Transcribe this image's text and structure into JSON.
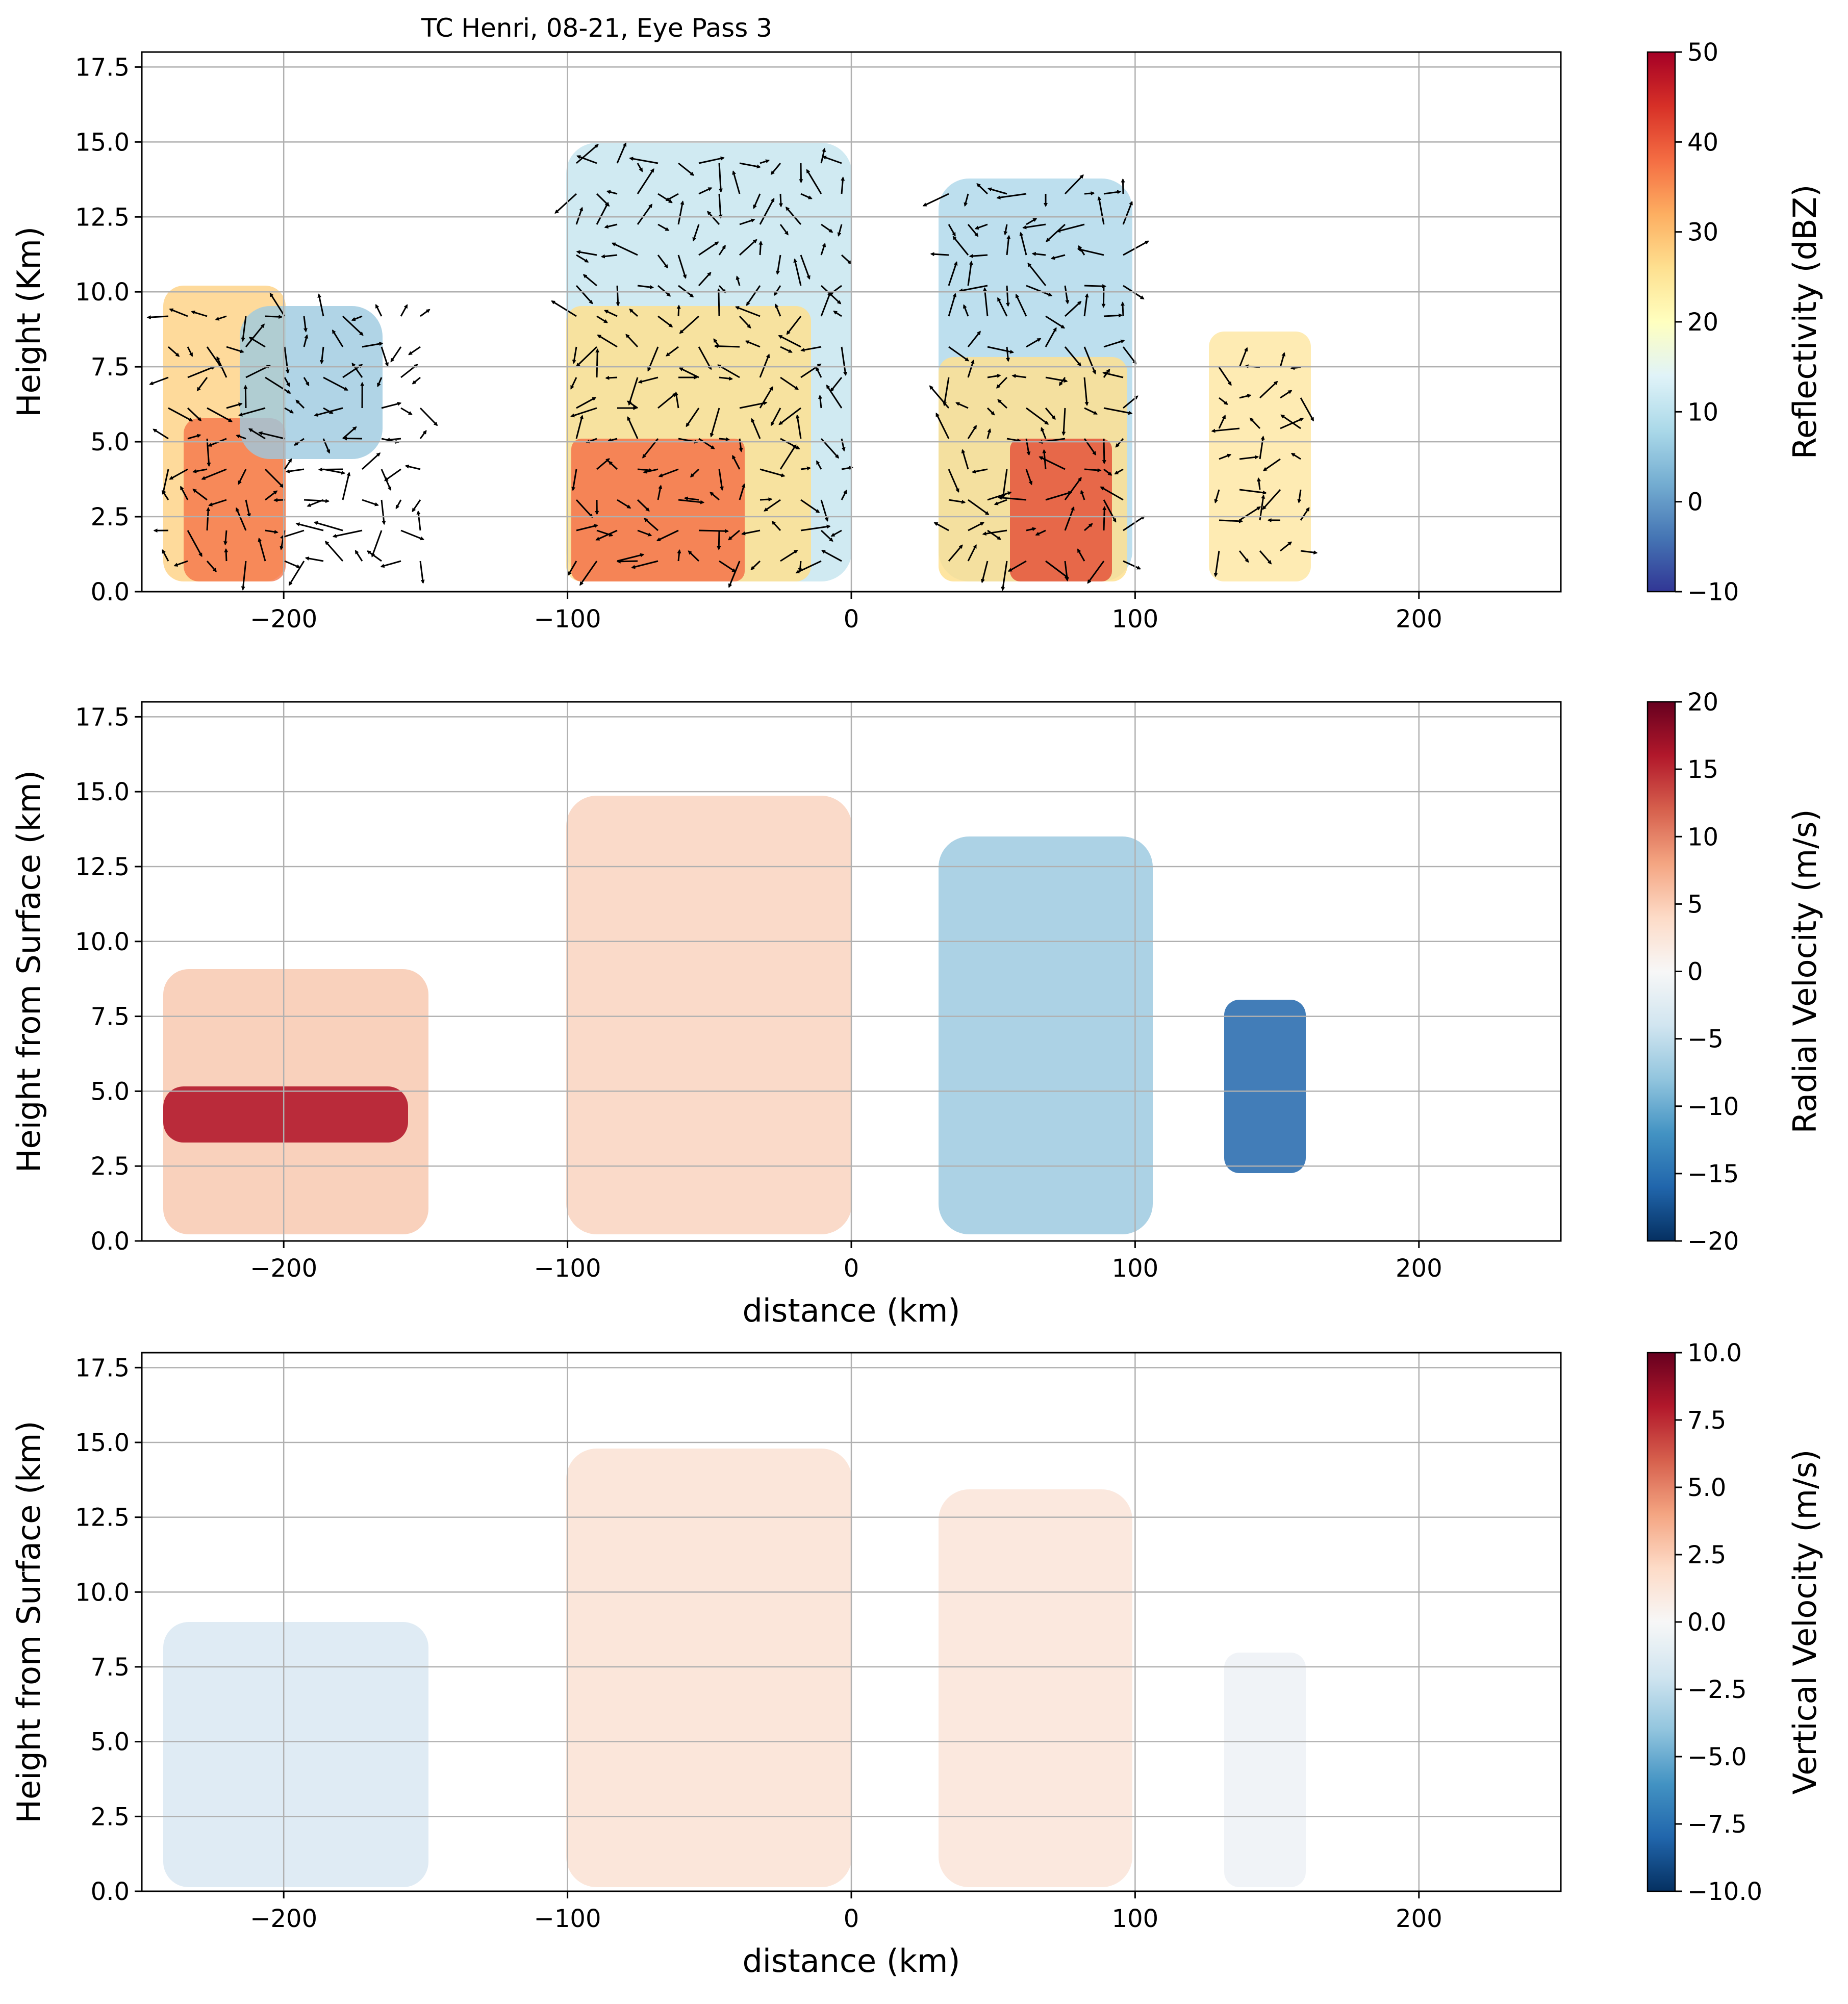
{
  "figure": {
    "title": "TC Henri, 08-21, Eye Pass 3"
  },
  "chart_data": [
    {
      "type": "heatmap",
      "title": "TC Henri, 08-21, Eye Pass 3",
      "xlabel": "",
      "ylabel": "Height (Km)",
      "xlim": [
        -250,
        250
      ],
      "ylim": [
        0,
        18
      ],
      "xticks": [
        -200,
        -100,
        0,
        100,
        200
      ],
      "xtick_labels": [
        "−200",
        "−100",
        "0",
        "100",
        "200"
      ],
      "yticks": [
        0,
        2.5,
        5,
        7.5,
        10,
        12.5,
        15,
        17.5
      ],
      "ytick_labels": [
        "0.0",
        "2.5",
        "5.0",
        "7.5",
        "10.0",
        "12.5",
        "15.0",
        "17.5"
      ],
      "grid": true,
      "colormap": "RdYlBu_r",
      "colorbar": {
        "label": "Reflectivity (dBZ)",
        "min": -10,
        "max": 50,
        "ticks": [
          -10,
          0,
          10,
          20,
          30,
          40,
          50
        ],
        "tick_labels": [
          "−10",
          "0",
          "10",
          "20",
          "30",
          "40",
          "50"
        ]
      },
      "has_wind_vectors": true,
      "echo_regions": [
        {
          "x": [
            -245,
            -140
          ],
          "y": [
            0.3,
            9.5
          ],
          "peak": 44
        },
        {
          "x": [
            -100,
            -5
          ],
          "y": [
            0.3,
            15.0
          ],
          "peak": 46
        },
        {
          "x": [
            0,
            105
          ],
          "y": [
            0.3,
            13.5
          ],
          "peak": 47
        },
        {
          "x": [
            120,
            165
          ],
          "y": [
            0.3,
            8.5
          ],
          "peak": 38
        }
      ]
    },
    {
      "type": "heatmap",
      "title": "",
      "xlabel": "distance (km)",
      "ylabel": "Height from Surface (km)",
      "xlim": [
        -250,
        250
      ],
      "ylim": [
        0,
        18
      ],
      "xticks": [
        -200,
        -100,
        0,
        100,
        200
      ],
      "xtick_labels": [
        "−200",
        "−100",
        "0",
        "100",
        "200"
      ],
      "yticks": [
        0,
        2.5,
        5,
        7.5,
        10,
        12.5,
        15,
        17.5
      ],
      "ytick_labels": [
        "0.0",
        "2.5",
        "5.0",
        "7.5",
        "10.0",
        "12.5",
        "15.0",
        "17.5"
      ],
      "grid": true,
      "colormap": "RdBu_r",
      "colorbar": {
        "label": "Radial Velocity (m/s)",
        "min": -20,
        "max": 20,
        "ticks": [
          -20,
          -15,
          -10,
          -5,
          0,
          5,
          10,
          15,
          20
        ],
        "tick_labels": [
          "−20",
          "−15",
          "−10",
          "−5",
          "0",
          "5",
          "10",
          "15",
          "20"
        ]
      },
      "echo_regions": [
        {
          "x": [
            -245,
            -140
          ],
          "y": [
            0.3,
            9.5
          ],
          "value": 18
        },
        {
          "x": [
            -100,
            -5
          ],
          "y": [
            0.3,
            15.0
          ],
          "value": 6
        },
        {
          "x": [
            0,
            105
          ],
          "y": [
            0.3,
            13.5
          ],
          "value": -9
        },
        {
          "x": [
            120,
            165
          ],
          "y": [
            0.3,
            8.5
          ],
          "value": -15
        }
      ]
    },
    {
      "type": "heatmap",
      "title": "",
      "xlabel": "distance (km)",
      "ylabel": "Height from Surface (km)",
      "xlim": [
        -250,
        250
      ],
      "ylim": [
        0,
        18
      ],
      "xticks": [
        -200,
        -100,
        0,
        100,
        200
      ],
      "xtick_labels": [
        "−200",
        "−100",
        "0",
        "100",
        "200"
      ],
      "yticks": [
        0,
        2.5,
        5,
        7.5,
        10,
        12.5,
        15,
        17.5
      ],
      "ytick_labels": [
        "0.0",
        "2.5",
        "5.0",
        "7.5",
        "10.0",
        "12.5",
        "15.0",
        "17.5"
      ],
      "grid": true,
      "colormap": "RdBu_r",
      "colorbar": {
        "label": "Vertical Velocity (m/s)",
        "min": -10,
        "max": 10,
        "ticks": [
          -10,
          -7.5,
          -5,
          -2.5,
          0,
          2.5,
          5,
          7.5,
          10
        ],
        "tick_labels": [
          "−10.0",
          "−7.5",
          "−5.0",
          "−2.5",
          "0.0",
          "2.5",
          "5.0",
          "7.5",
          "10.0"
        ]
      },
      "echo_regions": [
        {
          "x": [
            -245,
            -140
          ],
          "y": [
            0.3,
            9.5
          ],
          "value": -1.5
        },
        {
          "x": [
            -100,
            -5
          ],
          "y": [
            0.3,
            15.0
          ],
          "value": 1.5
        },
        {
          "x": [
            0,
            105
          ],
          "y": [
            0.3,
            13.5
          ],
          "value": 1.0
        },
        {
          "x": [
            120,
            165
          ],
          "y": [
            0.3,
            8.5
          ],
          "value": 0.5
        }
      ]
    }
  ]
}
